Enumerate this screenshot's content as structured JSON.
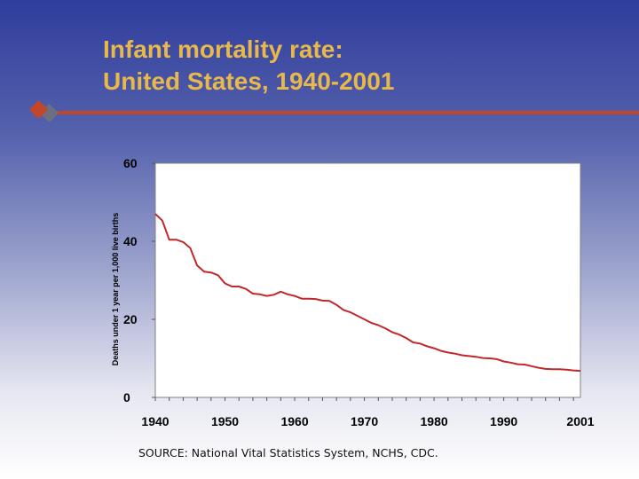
{
  "slide": {
    "title_line1": "Infant mortality rate:",
    "title_line2": "United States, 1940-2001",
    "source": "SOURCE: National Vital Statistics System, NCHS, CDC.",
    "colors": {
      "title": "#e8b84a",
      "accent_rule": "#c0472a",
      "series": "#c0282a",
      "background_top": "#2f3d9c",
      "background_bottom": "#ffffff"
    }
  },
  "chart_data": {
    "type": "line",
    "title": "",
    "xlabel": "",
    "ylabel": "Deaths under 1 year per 1,000 live births",
    "xlim": [
      1940,
      2001
    ],
    "ylim": [
      0,
      60
    ],
    "x_ticks": [
      1940,
      1950,
      1960,
      1970,
      1980,
      1990,
      2001
    ],
    "y_ticks": [
      0,
      20,
      40,
      60
    ],
    "grid": false,
    "legend": "none",
    "series": [
      {
        "name": "",
        "color": "#c0282a",
        "x": [
          1940,
          1941,
          1942,
          1943,
          1944,
          1945,
          1946,
          1947,
          1948,
          1949,
          1950,
          1951,
          1952,
          1953,
          1954,
          1955,
          1956,
          1957,
          1958,
          1959,
          1960,
          1961,
          1962,
          1963,
          1964,
          1965,
          1966,
          1967,
          1968,
          1969,
          1970,
          1971,
          1972,
          1973,
          1974,
          1975,
          1976,
          1977,
          1978,
          1979,
          1980,
          1981,
          1982,
          1983,
          1984,
          1985,
          1986,
          1987,
          1988,
          1989,
          1990,
          1991,
          1992,
          1993,
          1994,
          1995,
          1996,
          1997,
          1998,
          1999,
          2000,
          2001
        ],
        "y": [
          47.0,
          45.3,
          40.4,
          40.4,
          39.8,
          38.3,
          33.8,
          32.2,
          32.0,
          31.3,
          29.2,
          28.4,
          28.4,
          27.8,
          26.6,
          26.4,
          26.0,
          26.3,
          27.1,
          26.4,
          26.0,
          25.3,
          25.3,
          25.2,
          24.8,
          24.7,
          23.7,
          22.4,
          21.8,
          20.9,
          20.0,
          19.1,
          18.5,
          17.7,
          16.7,
          16.1,
          15.2,
          14.1,
          13.8,
          13.1,
          12.6,
          11.9,
          11.5,
          11.2,
          10.8,
          10.6,
          10.4,
          10.1,
          10.0,
          9.8,
          9.2,
          8.9,
          8.5,
          8.4,
          8.0,
          7.6,
          7.3,
          7.2,
          7.2,
          7.1,
          6.9,
          6.8
        ]
      }
    ]
  }
}
